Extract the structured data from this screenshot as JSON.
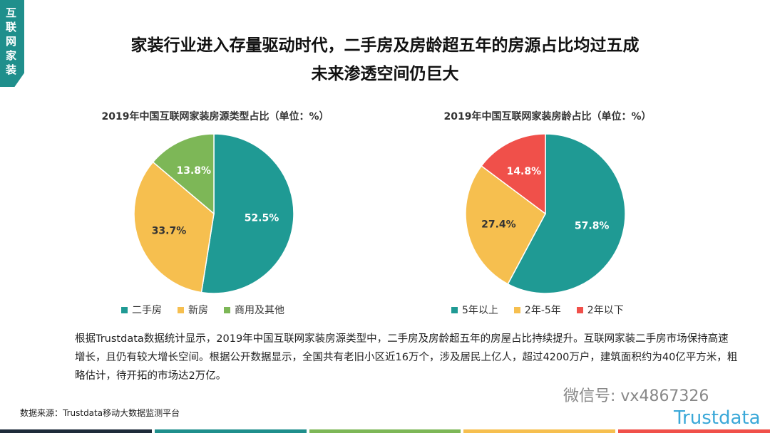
{
  "tag": "互联网家装",
  "title": [
    "家装行业进入存量驱动时代，二手房及房龄超五年的房源占比均过五成",
    "未来渗透空间仍巨大"
  ],
  "chart_data": [
    {
      "type": "pie",
      "title": "2019年中国互联网家装房源类型占比（单位：%）",
      "categories": [
        "二手房",
        "新房",
        "商用及其他"
      ],
      "values": [
        52.5,
        33.7,
        13.8
      ],
      "labels": [
        "52.5%",
        "33.7%",
        "13.8%"
      ],
      "colors": [
        "#1f9a94",
        "#f6bf4f",
        "#7db757"
      ],
      "legend": "bottom"
    },
    {
      "type": "pie",
      "title": "2019年中国互联网家装房龄占比（单位：%）",
      "categories": [
        "5年以上",
        "2年-5年",
        "2年以下"
      ],
      "values": [
        57.8,
        27.4,
        14.8
      ],
      "labels": [
        "57.8%",
        "27.4%",
        "14.8%"
      ],
      "colors": [
        "#1f9a94",
        "#f6bf4f",
        "#f0504a"
      ],
      "legend": "bottom"
    }
  ],
  "body": "根据Trustdata数据统计显示，2019年中国互联网家装房源类型中，二手房及房龄超五年的房屋占比持续提升。互联网家装二手房市场保持高速增长，且仍有较大增长空间。根据公开数据显示，全国共有老旧小区近16万个，涉及居民上亿人，超过4200万户，建筑面积约为40亿平方米，粗略估计，待开拓的市场达2万亿。",
  "source": "数据来源：Trustdata移动大数据监测平台",
  "watermark": "微信号: vx4867326",
  "logo": "Trustdata",
  "bar_colors": [
    "#1e2b3a",
    "#1f8f8c",
    "#7db757",
    "#f6bf4f",
    "#f0504a"
  ]
}
